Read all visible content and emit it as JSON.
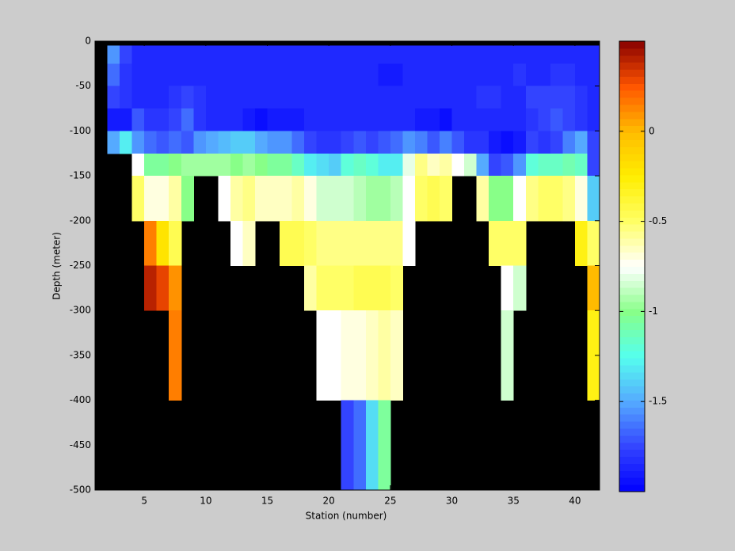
{
  "chart_data": {
    "type": "heatmap",
    "xlabel": "Station (number)",
    "ylabel": "Depth (meter)",
    "xlim": [
      1,
      42
    ],
    "ylim": [
      -500,
      0
    ],
    "xticks": [
      5,
      10,
      15,
      20,
      25,
      30,
      35,
      40
    ],
    "yticks": [
      0,
      -50,
      -100,
      -150,
      -200,
      -250,
      -300,
      -350,
      -400,
      -450,
      -500
    ],
    "xbins": [
      2,
      3,
      4,
      5,
      6,
      7,
      8,
      9,
      10,
      11,
      12,
      13,
      14,
      15,
      16,
      17,
      18,
      19,
      20,
      21,
      22,
      23,
      24,
      25,
      26,
      27,
      28,
      29,
      30,
      31,
      32,
      33,
      34,
      35,
      36,
      37,
      38,
      39,
      40,
      41,
      42
    ],
    "ybins": [
      -5,
      -25,
      -50,
      -75,
      -100,
      -125,
      -150,
      -200,
      -250,
      -300,
      -400,
      -500
    ],
    "values": [
      [
        -1.55,
        -1.75,
        -1.85,
        -1.85,
        -1.85,
        -1.85,
        -1.85,
        -1.85,
        -1.85,
        -1.85,
        -1.85,
        -1.85,
        -1.85,
        -1.85,
        -1.85,
        -1.85,
        -1.85,
        -1.85,
        -1.85,
        -1.85,
        -1.85,
        -1.85,
        -1.85,
        -1.85,
        -1.85,
        -1.85,
        -1.85,
        -1.85,
        -1.85,
        -1.85,
        -1.85,
        -1.85,
        -1.85,
        -1.85,
        -1.85,
        -1.85,
        -1.85,
        -1.85,
        -1.85,
        -1.85
      ],
      [
        -1.65,
        -1.8,
        -1.85,
        -1.85,
        -1.85,
        -1.85,
        -1.85,
        -1.85,
        -1.85,
        -1.85,
        -1.85,
        -1.85,
        -1.85,
        -1.85,
        -1.85,
        -1.85,
        -1.85,
        -1.85,
        -1.85,
        -1.85,
        -1.85,
        -1.85,
        -1.9,
        -1.9,
        -1.85,
        -1.85,
        -1.85,
        -1.85,
        -1.85,
        -1.85,
        -1.85,
        -1.85,
        -1.85,
        -1.8,
        -1.85,
        -1.85,
        -1.8,
        -1.8,
        -1.85,
        -1.85
      ],
      [
        -1.75,
        -1.8,
        -1.85,
        -1.85,
        -1.85,
        -1.8,
        -1.75,
        -1.8,
        -1.85,
        -1.85,
        -1.85,
        -1.85,
        -1.85,
        -1.85,
        -1.85,
        -1.85,
        -1.85,
        -1.85,
        -1.85,
        -1.85,
        -1.85,
        -1.85,
        -1.85,
        -1.85,
        -1.85,
        -1.85,
        -1.85,
        -1.85,
        -1.85,
        -1.85,
        -1.8,
        -1.8,
        -1.85,
        -1.85,
        -1.75,
        -1.75,
        -1.75,
        -1.75,
        -1.8,
        -1.85
      ],
      [
        -1.9,
        -1.9,
        -1.7,
        -1.8,
        -1.8,
        -1.75,
        -1.65,
        -1.8,
        -1.85,
        -1.85,
        -1.85,
        -1.9,
        -1.95,
        -1.9,
        -1.9,
        -1.9,
        -1.85,
        -1.85,
        -1.85,
        -1.85,
        -1.85,
        -1.85,
        -1.85,
        -1.85,
        -1.85,
        -1.9,
        -1.9,
        -1.95,
        -1.85,
        -1.85,
        -1.85,
        -1.85,
        -1.85,
        -1.85,
        -1.8,
        -1.75,
        -1.7,
        -1.75,
        -1.8,
        -1.85
      ],
      [
        -1.5,
        -1.3,
        -1.55,
        -1.65,
        -1.7,
        -1.65,
        -1.7,
        -1.55,
        -1.5,
        -1.45,
        -1.4,
        -1.4,
        -1.5,
        -1.55,
        -1.55,
        -1.65,
        -1.75,
        -1.8,
        -1.8,
        -1.75,
        -1.7,
        -1.75,
        -1.7,
        -1.65,
        -1.55,
        -1.6,
        -1.7,
        -1.6,
        -1.7,
        -1.8,
        -1.8,
        -1.9,
        -1.95,
        -1.9,
        -1.75,
        -1.8,
        -1.75,
        -1.6,
        -1.5,
        -1.75
      ],
      [
        null,
        null,
        -0.75,
        -1.05,
        -1.05,
        -1.0,
        -0.95,
        -0.95,
        -0.95,
        -0.95,
        -1.0,
        -0.95,
        -1.0,
        -1.05,
        -1.05,
        -1.15,
        -1.3,
        -1.35,
        -1.4,
        -1.2,
        -1.15,
        -1.2,
        -1.3,
        -1.3,
        -0.8,
        -0.55,
        -0.65,
        -0.6,
        -0.75,
        -0.85,
        -1.5,
        -1.75,
        -1.7,
        -1.55,
        -1.2,
        -1.15,
        -1.15,
        -1.1,
        -1.15,
        -1.75
      ],
      [
        null,
        null,
        -0.5,
        -0.7,
        -0.7,
        -0.6,
        -1.0,
        null,
        null,
        -0.75,
        -0.6,
        -0.55,
        -0.65,
        -0.65,
        -0.65,
        -0.6,
        -0.7,
        -0.85,
        -0.85,
        -0.85,
        -0.9,
        -0.95,
        -0.95,
        -0.9,
        -0.75,
        -0.5,
        -0.45,
        -0.5,
        null,
        null,
        -0.6,
        -1.0,
        -1.0,
        -0.75,
        -0.55,
        -0.5,
        -0.5,
        -0.55,
        -0.7,
        -1.4
      ],
      [
        null,
        null,
        null,
        0.15,
        -0.2,
        -0.45,
        null,
        null,
        null,
        null,
        -0.75,
        -0.65,
        null,
        null,
        -0.45,
        -0.45,
        -0.5,
        -0.55,
        -0.55,
        -0.55,
        -0.55,
        -0.55,
        -0.55,
        -0.55,
        -0.75,
        null,
        null,
        null,
        null,
        null,
        null,
        -0.5,
        -0.5,
        -0.5,
        null,
        null,
        null,
        null,
        -0.3,
        -0.5
      ],
      [
        null,
        null,
        null,
        0.4,
        0.3,
        0.1,
        null,
        null,
        null,
        null,
        null,
        null,
        null,
        null,
        null,
        null,
        -0.6,
        -0.5,
        -0.5,
        -0.5,
        -0.45,
        -0.45,
        -0.45,
        -0.5,
        null,
        null,
        null,
        null,
        null,
        null,
        null,
        null,
        -0.75,
        -0.85,
        null,
        null,
        null,
        null,
        null,
        0.0
      ],
      [
        null,
        null,
        null,
        null,
        null,
        0.15,
        null,
        null,
        null,
        null,
        null,
        null,
        null,
        null,
        null,
        null,
        null,
        -0.75,
        -0.75,
        -0.7,
        -0.7,
        -0.65,
        -0.6,
        -0.65,
        null,
        null,
        null,
        null,
        null,
        null,
        null,
        null,
        -0.85,
        null,
        null,
        null,
        null,
        null,
        null,
        -0.3
      ],
      [
        null,
        null,
        null,
        null,
        null,
        null,
        null,
        null,
        null,
        null,
        null,
        null,
        null,
        null,
        null,
        null,
        null,
        null,
        null,
        -1.75,
        -1.65,
        -1.35,
        -1.05,
        null,
        null,
        null,
        null,
        null,
        null,
        null,
        null,
        null,
        null,
        null,
        null,
        null,
        null,
        null,
        null,
        null
      ]
    ],
    "clim": [
      -2,
      0.5
    ],
    "cticks": [
      -1.5,
      -1,
      -0.5,
      0
    ],
    "colormap": [
      "#0000ff",
      "#3344ff",
      "#55aaff",
      "#55ffee",
      "#88ff88",
      "#ffffff",
      "#ffff66",
      "#ffee00",
      "#ffbb00",
      "#ff5500",
      "#880000"
    ],
    "missing_color": "#000000"
  }
}
